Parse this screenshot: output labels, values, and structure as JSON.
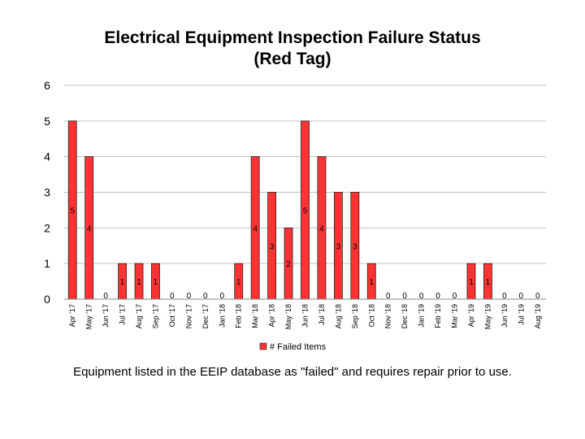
{
  "chart_data": {
    "type": "bar",
    "title_lines": [
      "Electrical Equipment Inspection Failure Status",
      "(Red Tag)"
    ],
    "categories": [
      "Apr '17",
      "May '17",
      "Jun '17",
      "Jul '17",
      "Aug '17",
      "Sep '17",
      "Oct '17",
      "Nov '17",
      "Dec '17",
      "Jan '18",
      "Feb '18",
      "Mar '18",
      "Apr '18",
      "May '18",
      "Jun '18",
      "Jul '18",
      "Aug '18",
      "Sep '18",
      "Oct '18",
      "Nov '18",
      "Dec '18",
      "Jan '19",
      "Feb '19",
      "Mar '19",
      "Apr '19",
      "May '19",
      "Jun '19",
      "Jul '19",
      "Aug '19"
    ],
    "series": [
      {
        "name": "# Failed Items",
        "color": "#ff3333",
        "values": [
          5,
          4,
          0,
          1,
          1,
          1,
          0,
          0,
          0,
          0,
          1,
          4,
          3,
          2,
          5,
          4,
          3,
          3,
          1,
          0,
          0,
          0,
          0,
          0,
          1,
          1,
          0,
          0,
          0
        ]
      }
    ],
    "yticks": [
      0,
      1,
      2,
      3,
      4,
      5,
      6
    ],
    "ylim": [
      0,
      6
    ],
    "grid": true,
    "legend": "bottom-center",
    "caption": "Equipment listed in the EEIP database as \"failed\" and requires repair prior to use."
  }
}
